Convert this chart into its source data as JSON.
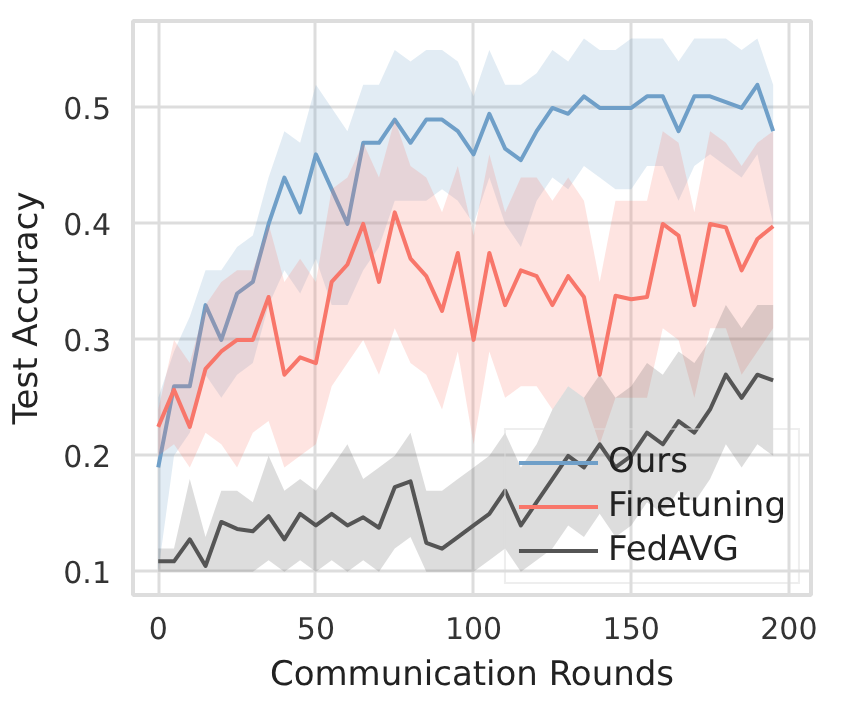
{
  "chart_data": {
    "type": "line",
    "xlabel": "Communication Rounds",
    "ylabel": "Test Accuracy",
    "x": [
      0,
      5,
      10,
      15,
      20,
      25,
      30,
      35,
      40,
      45,
      50,
      55,
      60,
      65,
      70,
      75,
      80,
      85,
      90,
      95,
      100,
      105,
      110,
      115,
      120,
      125,
      130,
      135,
      140,
      145,
      150,
      155,
      160,
      165,
      170,
      175,
      180,
      185,
      190,
      195
    ],
    "xlim": [
      -8,
      207
    ],
    "ylim": [
      0.08,
      0.575
    ],
    "xticks": [
      0,
      50,
      100,
      150,
      200
    ],
    "yticks": [
      0.1,
      0.2,
      0.3,
      0.4,
      0.5
    ],
    "grid": true,
    "legend": "bottom right",
    "line_style": "solid",
    "series": [
      {
        "name": "Ours",
        "color": "#6f9fc8",
        "values": [
          0.19,
          0.26,
          0.26,
          0.33,
          0.3,
          0.34,
          0.35,
          0.4,
          0.44,
          0.41,
          0.46,
          0.43,
          0.4,
          0.47,
          0.47,
          0.49,
          0.47,
          0.49,
          0.49,
          0.48,
          0.46,
          0.495,
          0.465,
          0.455,
          0.48,
          0.5,
          0.495,
          0.51,
          0.5,
          0.5,
          0.5,
          0.51,
          0.51,
          0.48,
          0.51,
          0.51,
          0.505,
          0.5,
          0.52,
          0.48
        ],
        "lower": [
          0.1,
          0.2,
          0.22,
          0.27,
          0.25,
          0.27,
          0.28,
          0.33,
          0.36,
          0.34,
          0.37,
          0.33,
          0.33,
          0.36,
          0.38,
          0.42,
          0.42,
          0.42,
          0.43,
          0.42,
          0.4,
          0.44,
          0.4,
          0.38,
          0.42,
          0.44,
          0.43,
          0.45,
          0.44,
          0.43,
          0.43,
          0.45,
          0.45,
          0.42,
          0.45,
          0.46,
          0.45,
          0.44,
          0.46,
          0.4
        ],
        "upper": [
          0.25,
          0.29,
          0.32,
          0.36,
          0.36,
          0.38,
          0.39,
          0.44,
          0.48,
          0.47,
          0.52,
          0.5,
          0.48,
          0.52,
          0.52,
          0.55,
          0.54,
          0.55,
          0.55,
          0.54,
          0.51,
          0.55,
          0.52,
          0.52,
          0.53,
          0.55,
          0.54,
          0.56,
          0.55,
          0.55,
          0.56,
          0.56,
          0.56,
          0.54,
          0.56,
          0.56,
          0.56,
          0.55,
          0.56,
          0.52
        ]
      },
      {
        "name": "Finetuning",
        "color": "#f8766a",
        "values": [
          0.225,
          0.257,
          0.225,
          0.275,
          0.29,
          0.3,
          0.3,
          0.337,
          0.27,
          0.285,
          0.28,
          0.35,
          0.365,
          0.4,
          0.35,
          0.41,
          0.37,
          0.355,
          0.325,
          0.375,
          0.3,
          0.375,
          0.33,
          0.36,
          0.355,
          0.33,
          0.355,
          0.337,
          0.27,
          0.338,
          0.335,
          0.337,
          0.4,
          0.39,
          0.33,
          0.4,
          0.397,
          0.36,
          0.387,
          0.398
        ],
        "lower": [
          0.2,
          0.21,
          0.19,
          0.22,
          0.21,
          0.19,
          0.22,
          0.23,
          0.19,
          0.2,
          0.21,
          0.26,
          0.28,
          0.3,
          0.27,
          0.31,
          0.28,
          0.27,
          0.24,
          0.29,
          0.21,
          0.29,
          0.25,
          0.26,
          0.26,
          0.24,
          0.26,
          0.25,
          0.21,
          0.25,
          0.25,
          0.25,
          0.31,
          0.3,
          0.25,
          0.31,
          0.31,
          0.27,
          0.29,
          0.31
        ],
        "upper": [
          0.24,
          0.3,
          0.28,
          0.33,
          0.35,
          0.36,
          0.36,
          0.4,
          0.35,
          0.37,
          0.35,
          0.43,
          0.44,
          0.47,
          0.44,
          0.49,
          0.45,
          0.44,
          0.41,
          0.45,
          0.39,
          0.46,
          0.41,
          0.44,
          0.44,
          0.42,
          0.44,
          0.42,
          0.35,
          0.42,
          0.42,
          0.42,
          0.48,
          0.47,
          0.41,
          0.48,
          0.47,
          0.45,
          0.47,
          0.48
        ]
      },
      {
        "name": "FedAVG",
        "color": "#555555",
        "values": [
          0.109,
          0.109,
          0.128,
          0.105,
          0.143,
          0.137,
          0.135,
          0.148,
          0.128,
          0.15,
          0.14,
          0.15,
          0.14,
          0.147,
          0.138,
          0.173,
          0.178,
          0.125,
          0.12,
          0.13,
          0.14,
          0.15,
          0.17,
          0.14,
          0.16,
          0.18,
          0.2,
          0.19,
          0.21,
          0.19,
          0.2,
          0.22,
          0.21,
          0.23,
          0.22,
          0.24,
          0.27,
          0.25,
          0.27,
          0.265
        ],
        "lower": [
          0.1,
          0.1,
          0.1,
          0.1,
          0.1,
          0.1,
          0.1,
          0.11,
          0.1,
          0.11,
          0.1,
          0.11,
          0.1,
          0.11,
          0.1,
          0.12,
          0.13,
          0.1,
          0.1,
          0.1,
          0.1,
          0.11,
          0.12,
          0.1,
          0.11,
          0.12,
          0.14,
          0.13,
          0.15,
          0.13,
          0.14,
          0.16,
          0.15,
          0.17,
          0.16,
          0.18,
          0.21,
          0.19,
          0.21,
          0.2
        ],
        "upper": [
          0.12,
          0.12,
          0.18,
          0.13,
          0.17,
          0.17,
          0.16,
          0.2,
          0.17,
          0.18,
          0.17,
          0.19,
          0.21,
          0.18,
          0.19,
          0.2,
          0.22,
          0.17,
          0.17,
          0.18,
          0.19,
          0.2,
          0.22,
          0.19,
          0.21,
          0.24,
          0.26,
          0.25,
          0.27,
          0.25,
          0.26,
          0.28,
          0.27,
          0.29,
          0.28,
          0.3,
          0.33,
          0.31,
          0.33,
          0.33
        ]
      }
    ]
  }
}
